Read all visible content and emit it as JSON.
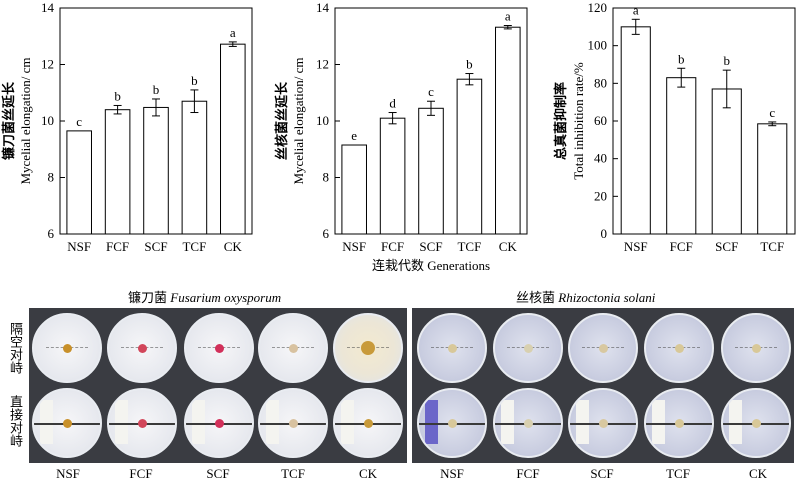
{
  "chart_data": [
    {
      "type": "bar",
      "ylabel_cn": "镰刀菌丝延长",
      "ylabel_en": "Mycelial elongation/ cm",
      "categories": [
        "NSF",
        "FCF",
        "SCF",
        "TCF",
        "CK"
      ],
      "values": [
        9.65,
        10.4,
        10.48,
        10.7,
        12.72
      ],
      "errors": [
        0.0,
        0.15,
        0.3,
        0.4,
        0.08
      ],
      "letters": [
        "c",
        "b",
        "b",
        "b",
        "a"
      ],
      "ylim": [
        6,
        14
      ],
      "yticks": [
        6,
        8,
        10,
        12,
        14
      ]
    },
    {
      "type": "bar",
      "ylabel_cn": "丝核菌丝延长",
      "ylabel_en": "Mycelial elongation/ cm",
      "xlabel": "连栽代数 Generations",
      "categories": [
        "NSF",
        "FCF",
        "SCF",
        "TCF",
        "CK"
      ],
      "values": [
        9.15,
        10.1,
        10.45,
        11.48,
        13.32
      ],
      "errors": [
        0.0,
        0.2,
        0.25,
        0.2,
        0.06
      ],
      "letters": [
        "e",
        "d",
        "c",
        "b",
        "a"
      ],
      "ylim": [
        6,
        14
      ],
      "yticks": [
        6,
        8,
        10,
        12,
        14
      ]
    },
    {
      "type": "bar",
      "ylabel_cn": "总真菌抑制率",
      "ylabel_en": "Total inhibition rate/%",
      "categories": [
        "NSF",
        "FCF",
        "SCF",
        "TCF"
      ],
      "values": [
        110,
        83,
        77,
        58.5
      ],
      "errors": [
        4,
        5,
        10,
        1
      ],
      "letters": [
        "a",
        "b",
        "b",
        "c"
      ],
      "ylim": [
        0,
        120
      ],
      "yticks": [
        0,
        20,
        40,
        60,
        80,
        100,
        120
      ]
    }
  ],
  "photos": {
    "left_title_cn": "镰刀菌",
    "left_title_sp": "Fusarium oxysporum",
    "right_title_cn": "丝核菌",
    "right_title_sp": "Rhizoctonia solani",
    "row1_label": "隔空对峙",
    "row2_label": "直接对峙",
    "dish_labels": [
      "NSF",
      "FCF",
      "SCF",
      "TCF",
      "CK"
    ]
  }
}
